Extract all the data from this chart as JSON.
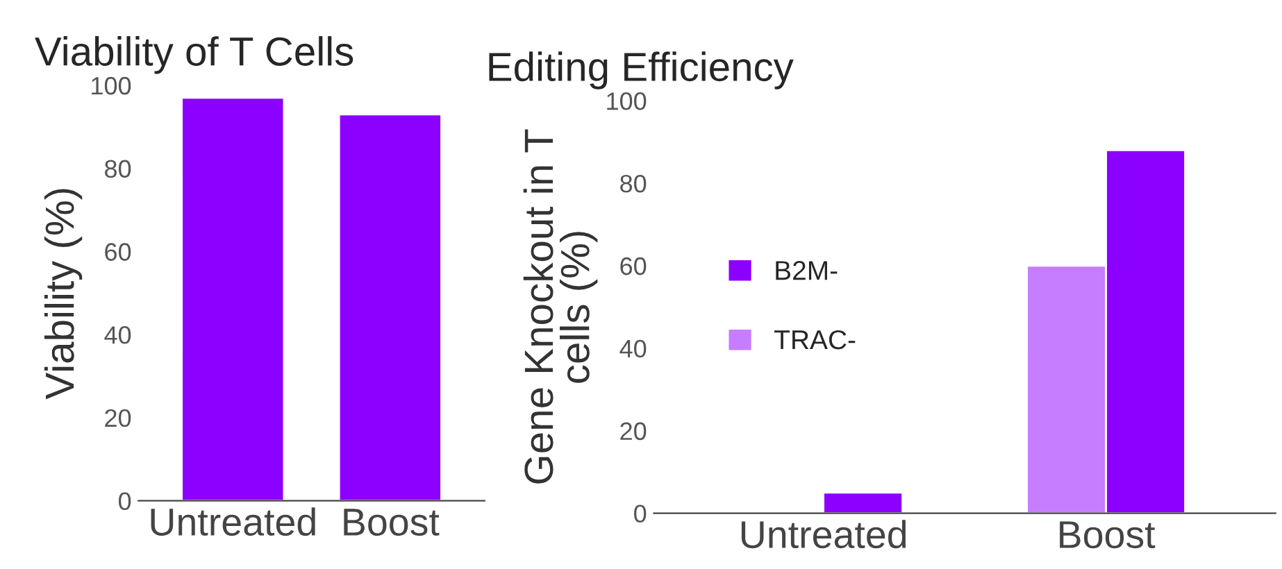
{
  "chart_data": [
    {
      "type": "bar",
      "title": "Viability of T Cells",
      "ylabel": "Viability (%)",
      "categories": [
        "Untreated",
        "Boost"
      ],
      "values": [
        97,
        93
      ],
      "color": "#8c00ff",
      "ylim": [
        0,
        100
      ],
      "yticks": [
        0,
        20,
        40,
        60,
        80,
        100
      ],
      "grid": false,
      "legend": false
    },
    {
      "type": "bar",
      "title": "Editing Efficiency",
      "ylabel": "Gene Knockout in T cells (%)",
      "categories": [
        "Untreated",
        "Boost"
      ],
      "series": [
        {
          "name": "TRAC-",
          "color": "#c77dff",
          "values": [
            null,
            60
          ]
        },
        {
          "name": "B2M-",
          "color": "#8c00ff",
          "values": [
            5,
            88
          ]
        }
      ],
      "ylim": [
        0,
        100
      ],
      "yticks": [
        0,
        20,
        40,
        60,
        80,
        100
      ],
      "grid": false,
      "legend": "left"
    }
  ]
}
